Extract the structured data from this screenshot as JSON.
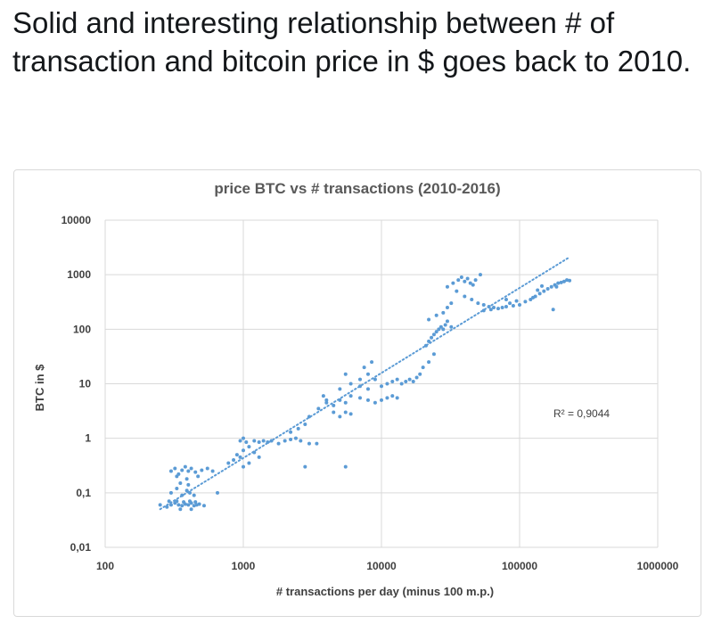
{
  "tweet": {
    "text": "Solid and interesting relationship between # of transaction and bitcoin price in $ goes back to 2010."
  },
  "colors": {
    "points": "#5b9bd5",
    "trendline": "#5b9bd5",
    "grid": "#d9d9d9"
  },
  "chart_data": {
    "type": "scatter",
    "title": "price BTC vs # transactions (2010-2016)",
    "xlabel": "# transactions per day (minus 100 m.p.)",
    "ylabel": "BTC in $",
    "x_scale": "log",
    "y_scale": "log",
    "xlim": [
      100,
      1000000
    ],
    "ylim": [
      0.01,
      10000
    ],
    "x_ticks": [
      "100",
      "1000",
      "10000",
      "100000",
      "1000000"
    ],
    "y_ticks": [
      "10000",
      "1000",
      "100",
      "10",
      "1",
      "0,1",
      "0,01"
    ],
    "grid": true,
    "legend": "none",
    "annotation": "R² = 0,9044",
    "trendline": {
      "x": [
        250,
        230000
      ],
      "y": [
        0.05,
        2100
      ]
    },
    "series": [
      {
        "points": [
          [
            250,
            0.06
          ],
          [
            280,
            0.055
          ],
          [
            300,
            0.06
          ],
          [
            320,
            0.065
          ],
          [
            340,
            0.06
          ],
          [
            360,
            0.058
          ],
          [
            380,
            0.062
          ],
          [
            400,
            0.06
          ],
          [
            420,
            0.065
          ],
          [
            440,
            0.058
          ],
          [
            460,
            0.06
          ],
          [
            480,
            0.062
          ],
          [
            520,
            0.058
          ],
          [
            290,
            0.07
          ],
          [
            330,
            0.07
          ],
          [
            370,
            0.068
          ],
          [
            410,
            0.07
          ],
          [
            450,
            0.068
          ],
          [
            350,
            0.05
          ],
          [
            420,
            0.05
          ],
          [
            300,
            0.1
          ],
          [
            330,
            0.12
          ],
          [
            360,
            0.09
          ],
          [
            390,
            0.11
          ],
          [
            410,
            0.1
          ],
          [
            440,
            0.09
          ],
          [
            350,
            0.15
          ],
          [
            400,
            0.14
          ],
          [
            300,
            0.25
          ],
          [
            320,
            0.28
          ],
          [
            340,
            0.22
          ],
          [
            360,
            0.26
          ],
          [
            380,
            0.3
          ],
          [
            400,
            0.25
          ],
          [
            420,
            0.28
          ],
          [
            450,
            0.24
          ],
          [
            500,
            0.26
          ],
          [
            550,
            0.28
          ],
          [
            600,
            0.25
          ],
          [
            330,
            0.2
          ],
          [
            390,
            0.18
          ],
          [
            470,
            0.2
          ],
          [
            650,
            0.1
          ],
          [
            780,
            0.35
          ],
          [
            850,
            0.4
          ],
          [
            900,
            0.5
          ],
          [
            950,
            0.45
          ],
          [
            1000,
            0.6
          ],
          [
            1100,
            0.7
          ],
          [
            1200,
            0.55
          ],
          [
            1300,
            0.45
          ],
          [
            1000,
            0.3
          ],
          [
            1100,
            0.35
          ],
          [
            950,
            0.9
          ],
          [
            1000,
            1.0
          ],
          [
            1050,
            0.85
          ],
          [
            1200,
            0.9
          ],
          [
            1300,
            0.85
          ],
          [
            1400,
            0.9
          ],
          [
            1500,
            0.85
          ],
          [
            1600,
            0.9
          ],
          [
            1800,
            0.8
          ],
          [
            2000,
            0.9
          ],
          [
            2200,
            0.95
          ],
          [
            2400,
            1.0
          ],
          [
            2600,
            0.9
          ],
          [
            3000,
            0.8
          ],
          [
            3400,
            0.8
          ],
          [
            2200,
            1.3
          ],
          [
            2500,
            1.5
          ],
          [
            2800,
            1.8
          ],
          [
            3000,
            2.5
          ],
          [
            3500,
            3.5
          ],
          [
            4000,
            4.5
          ],
          [
            3800,
            6
          ],
          [
            2800,
            0.3
          ],
          [
            5500,
            0.3
          ],
          [
            4000,
            5
          ],
          [
            4500,
            4
          ],
          [
            5000,
            5
          ],
          [
            5500,
            4.5
          ],
          [
            6000,
            6
          ],
          [
            7000,
            5.5
          ],
          [
            8000,
            5
          ],
          [
            9000,
            4.5
          ],
          [
            10000,
            5
          ],
          [
            11000,
            5.5
          ],
          [
            12000,
            6
          ],
          [
            13000,
            5.5
          ],
          [
            4500,
            3
          ],
          [
            5000,
            2.5
          ],
          [
            5500,
            3
          ],
          [
            6000,
            2.8
          ],
          [
            5000,
            8
          ],
          [
            6000,
            10
          ],
          [
            7000,
            12
          ],
          [
            8000,
            15
          ],
          [
            9000,
            12
          ],
          [
            5500,
            15
          ],
          [
            7500,
            20
          ],
          [
            8500,
            25
          ],
          [
            7000,
            9
          ],
          [
            8000,
            8
          ],
          [
            10000,
            9
          ],
          [
            11000,
            10
          ],
          [
            12000,
            11
          ],
          [
            13000,
            12
          ],
          [
            14000,
            10
          ],
          [
            15000,
            11
          ],
          [
            16000,
            12
          ],
          [
            17000,
            11
          ],
          [
            18000,
            13
          ],
          [
            19000,
            15
          ],
          [
            20000,
            20
          ],
          [
            22000,
            25
          ],
          [
            24000,
            35
          ],
          [
            21000,
            50
          ],
          [
            22000,
            60
          ],
          [
            23000,
            70
          ],
          [
            24000,
            80
          ],
          [
            25000,
            90
          ],
          [
            26000,
            100
          ],
          [
            27000,
            110
          ],
          [
            28000,
            100
          ],
          [
            29000,
            120
          ],
          [
            30000,
            140
          ],
          [
            32000,
            110
          ],
          [
            22000,
            150
          ],
          [
            25000,
            180
          ],
          [
            28000,
            200
          ],
          [
            30000,
            250
          ],
          [
            32000,
            300
          ],
          [
            30000,
            600
          ],
          [
            33000,
            700
          ],
          [
            36000,
            800
          ],
          [
            40000,
            750
          ],
          [
            44000,
            700
          ],
          [
            48000,
            800
          ],
          [
            52000,
            1000
          ],
          [
            38000,
            900
          ],
          [
            42000,
            850
          ],
          [
            46000,
            650
          ],
          [
            35000,
            500
          ],
          [
            40000,
            400
          ],
          [
            45000,
            350
          ],
          [
            50000,
            300
          ],
          [
            55000,
            280
          ],
          [
            60000,
            260
          ],
          [
            65000,
            250
          ],
          [
            70000,
            240
          ],
          [
            75000,
            250
          ],
          [
            80000,
            260
          ],
          [
            90000,
            270
          ],
          [
            100000,
            280
          ],
          [
            110000,
            320
          ],
          [
            120000,
            350
          ],
          [
            130000,
            400
          ],
          [
            140000,
            450
          ],
          [
            150000,
            500
          ],
          [
            160000,
            550
          ],
          [
            170000,
            600
          ],
          [
            180000,
            650
          ],
          [
            190000,
            700
          ],
          [
            200000,
            720
          ],
          [
            210000,
            750
          ],
          [
            220000,
            800
          ],
          [
            230000,
            780
          ],
          [
            55000,
            220
          ],
          [
            62000,
            230
          ],
          [
            85000,
            300
          ],
          [
            95000,
            330
          ],
          [
            125000,
            380
          ],
          [
            135000,
            520
          ],
          [
            145000,
            620
          ],
          [
            185000,
            600
          ],
          [
            175000,
            230
          ],
          [
            80000,
            350
          ]
        ]
      }
    ]
  }
}
